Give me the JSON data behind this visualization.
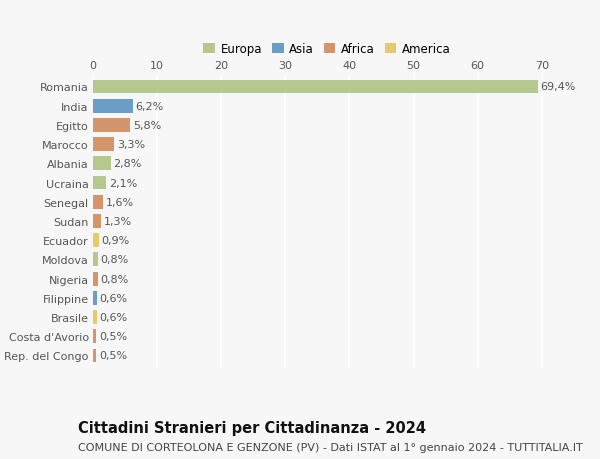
{
  "countries": [
    "Romania",
    "India",
    "Egitto",
    "Marocco",
    "Albania",
    "Ucraina",
    "Senegal",
    "Sudan",
    "Ecuador",
    "Moldova",
    "Nigeria",
    "Filippine",
    "Brasile",
    "Costa d'Avorio",
    "Rep. del Congo"
  ],
  "values": [
    69.4,
    6.2,
    5.8,
    3.3,
    2.8,
    2.1,
    1.6,
    1.3,
    0.9,
    0.8,
    0.8,
    0.6,
    0.6,
    0.5,
    0.5
  ],
  "labels": [
    "69,4%",
    "6,2%",
    "5,8%",
    "3,3%",
    "2,8%",
    "2,1%",
    "1,6%",
    "1,3%",
    "0,9%",
    "0,8%",
    "0,8%",
    "0,6%",
    "0,6%",
    "0,5%",
    "0,5%"
  ],
  "continents": [
    "Europa",
    "Asia",
    "Africa",
    "Africa",
    "Europa",
    "Europa",
    "Africa",
    "Africa",
    "America",
    "Europa",
    "Africa",
    "Asia",
    "America",
    "Africa",
    "Africa"
  ],
  "continent_colors": {
    "Europa": "#b5c98e",
    "Asia": "#6a9ec7",
    "Africa": "#d4956a",
    "America": "#e8c96e"
  },
  "legend_order": [
    "Europa",
    "Asia",
    "Africa",
    "America"
  ],
  "title": "Cittadini Stranieri per Cittadinanza - 2024",
  "subtitle": "COMUNE DI CORTEOLONA E GENZONE (PV) - Dati ISTAT al 1° gennaio 2024 - TUTTITALIA.IT",
  "xlim": [
    0,
    73
  ],
  "xticks": [
    0,
    10,
    20,
    30,
    40,
    50,
    60,
    70
  ],
  "background_color": "#f7f7f7",
  "bar_height": 0.72,
  "grid_color": "#ffffff",
  "label_fontsize": 8.0,
  "tick_fontsize": 8.0,
  "title_fontsize": 10.5,
  "subtitle_fontsize": 8.0
}
